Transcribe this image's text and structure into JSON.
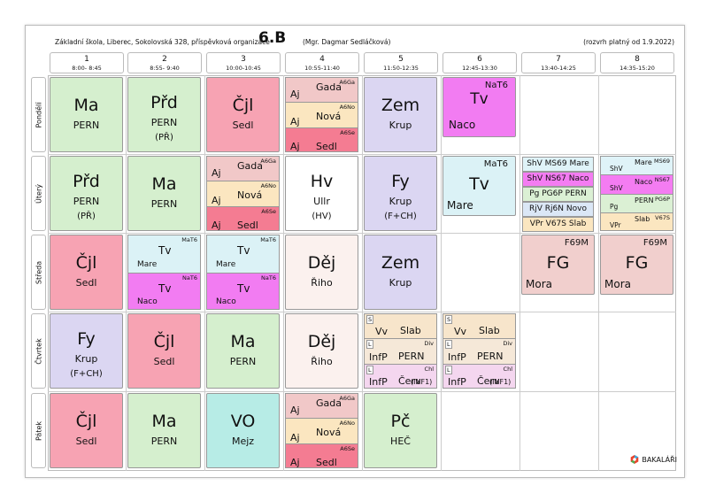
{
  "header": {
    "school": "Základní škola, Liberec, Sokolovská 328, příspěvková organizace",
    "class": "6.B",
    "teacher": "(Mgr. Dagmar Sedláčková)",
    "valid": "(rozvrh platný od 1.9.2022)"
  },
  "periods": [
    {
      "num": "1",
      "time": "8:00- 8:45"
    },
    {
      "num": "2",
      "time": "8:55- 9:40"
    },
    {
      "num": "3",
      "time": "10:00-10:45"
    },
    {
      "num": "4",
      "time": "10:55-11:40"
    },
    {
      "num": "5",
      "time": "11:50-12:35"
    },
    {
      "num": "6",
      "time": "12:45-13:30"
    },
    {
      "num": "7",
      "time": "13:40-14:25"
    },
    {
      "num": "8",
      "time": "14:35-15:20"
    }
  ],
  "days": [
    "Pondělí",
    "Úterý",
    "Středa",
    "Čtvrtek",
    "Pátek"
  ],
  "colors": {
    "Ma": "#d5efce",
    "Prd": "#d5efce",
    "Cjl": "#f7a3b3",
    "Zem": "#dbd6f2",
    "Tv": "#f27cf2",
    "Hv": "#ffffff",
    "Fy": "#dbd6f2",
    "Dej": "#fbf1ee",
    "TvBlue": "#dbf2f6",
    "FG": "#f1cfcd",
    "VO": "#b7ece6",
    "Pc": "#d5efce",
    "AjGa": "#f1c8c8",
    "AjNo": "#fbe6c0",
    "AjSe": "#f47c92",
    "ShV1": "#dff3f8",
    "ShV2": "#f47cf2",
    "Pg": "#dbf0d4",
    "RjV": "#dbe7f6",
    "VPr": "#fbe6c0",
    "Vv": "#f7e5cb",
    "InfP1": "#f5e8d8",
    "InfP2": "#f4d6ef"
  },
  "monday": {
    "p1": {
      "subj": "Ma",
      "teach": "PERN"
    },
    "p2": {
      "subj": "Přd",
      "teach": "PERN",
      "room": "(PŘ)"
    },
    "p3": {
      "subj": "Čjl",
      "teach": "Sedl"
    },
    "p4": [
      {
        "g": "A6Ga",
        "s": "Aj",
        "t": "Gada"
      },
      {
        "g": "A6No",
        "s": "Aj",
        "t": "Nová"
      },
      {
        "g": "A6Se",
        "s": "Aj",
        "t": "Sedl"
      }
    ],
    "p5": {
      "subj": "Zem",
      "teach": "Krup"
    },
    "p6": {
      "g": "NaT6",
      "subj": "Tv",
      "teach": "Naco"
    }
  },
  "tuesday": {
    "p1": {
      "subj": "Přd",
      "teach": "PERN",
      "room": "(PŘ)"
    },
    "p2": {
      "subj": "Ma",
      "teach": "PERN"
    },
    "p3": [
      {
        "g": "A6Ga",
        "s": "Aj",
        "t": "Gada"
      },
      {
        "g": "A6No",
        "s": "Aj",
        "t": "Nová"
      },
      {
        "g": "A6Se",
        "s": "Aj",
        "t": "Sedl"
      }
    ],
    "p4": {
      "subj": "Hv",
      "teach": "Ullr",
      "room": "(HV)"
    },
    "p5": {
      "subj": "Fy",
      "teach": "Krup",
      "room": "(F+CH)"
    },
    "p6": {
      "g": "MaT6",
      "subj": "Tv",
      "teach": "Mare"
    },
    "p7": [
      "ShV MS69 Mare",
      "ShV NS67 Naco",
      "Pg PG6P PERN",
      "RjV Rj6N Novo",
      "VPr V67S Slab"
    ],
    "p8": [
      {
        "g": "MS69",
        "s": "ShV",
        "t": "Mare"
      },
      {
        "g": "NS67",
        "s": "ShV",
        "t": "Naco"
      },
      {
        "g": "PG6P",
        "s": "Pg",
        "t": "PERN"
      },
      {
        "g": "V67S",
        "s": "VPr",
        "t": "Slab"
      }
    ]
  },
  "wednesday": {
    "p1": {
      "subj": "Čjl",
      "teach": "Sedl"
    },
    "p2": [
      {
        "g": "MaT6",
        "s": "Tv",
        "t": "Mare"
      },
      {
        "g": "NaT6",
        "s": "Tv",
        "t": "Naco"
      }
    ],
    "p3": [
      {
        "g": "MaT6",
        "s": "Tv",
        "t": "Mare"
      },
      {
        "g": "NaT6",
        "s": "Tv",
        "t": "Naco"
      }
    ],
    "p4": {
      "subj": "Děj",
      "teach": "Řiho"
    },
    "p5": {
      "subj": "Zem",
      "teach": "Krup"
    },
    "p7": {
      "g": "F69M",
      "subj": "FG",
      "teach": "Mora"
    },
    "p8": {
      "g": "F69M",
      "subj": "FG",
      "teach": "Mora"
    }
  },
  "thursday": {
    "p1": {
      "subj": "Fy",
      "teach": "Krup",
      "room": "(F+CH)"
    },
    "p2": {
      "subj": "Čjl",
      "teach": "Sedl"
    },
    "p3": {
      "subj": "Ma",
      "teach": "PERN"
    },
    "p4": {
      "subj": "Děj",
      "teach": "Řiho"
    },
    "p5": [
      {
        "b": "S",
        "s": "Vv",
        "t": "Slab"
      },
      {
        "b": "L",
        "g": "Div",
        "s": "InfP",
        "t": "PERN"
      },
      {
        "b": "L",
        "g": "Chl",
        "s": "InfP",
        "t": "Červ",
        "x": "(INF1)"
      }
    ],
    "p6": [
      {
        "b": "S",
        "s": "Vv",
        "t": "Slab"
      },
      {
        "b": "L",
        "g": "Div",
        "s": "InfP",
        "t": "PERN"
      },
      {
        "b": "L",
        "g": "Chl",
        "s": "InfP",
        "t": "Červ",
        "x": "(INF1)"
      }
    ]
  },
  "friday": {
    "p1": {
      "subj": "Čjl",
      "teach": "Sedl"
    },
    "p2": {
      "subj": "Ma",
      "teach": "PERN"
    },
    "p3": {
      "subj": "VO",
      "teach": "Mejz"
    },
    "p4": [
      {
        "g": "A6Ga",
        "s": "Aj",
        "t": "Gada"
      },
      {
        "g": "A6No",
        "s": "Aj",
        "t": "Nová"
      },
      {
        "g": "A6Se",
        "s": "Aj",
        "t": "Sedl"
      }
    ],
    "p5": {
      "subj": "Pč",
      "teach": "HEČ"
    }
  },
  "logo": "BAKALÁŘI"
}
